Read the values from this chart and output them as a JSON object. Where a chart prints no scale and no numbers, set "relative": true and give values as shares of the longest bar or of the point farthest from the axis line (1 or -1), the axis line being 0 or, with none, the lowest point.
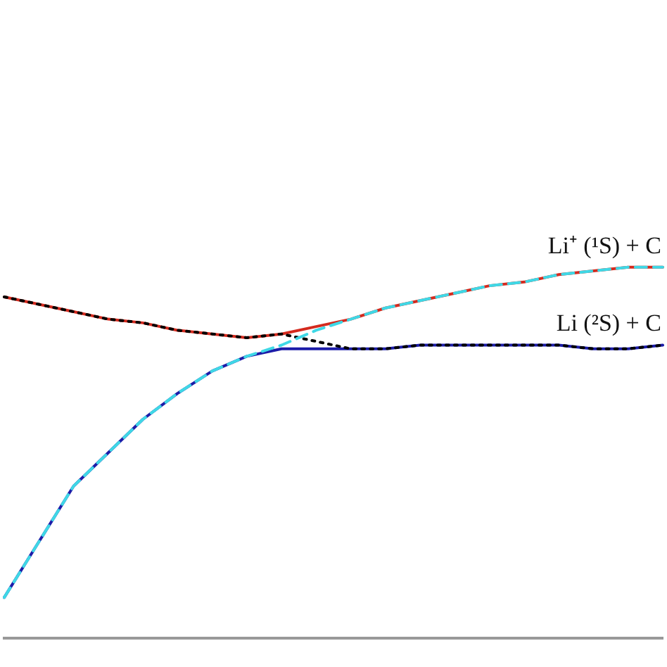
{
  "chart_data": {
    "type": "line",
    "relative": true,
    "legend": false,
    "grid": false,
    "marker": "none",
    "categories": [
      null,
      null,
      null,
      null,
      null,
      null,
      null,
      null,
      null,
      null,
      null,
      null,
      null,
      null,
      null,
      null,
      null,
      null,
      null,
      null
    ],
    "series": [
      {
        "color": "#d42a1e",
        "line_style": "solid",
        "values": [
          0.92,
          0.9,
          0.88,
          0.86,
          0.85,
          0.83,
          0.82,
          0.81,
          0.82,
          0.84,
          0.86,
          0.89,
          0.91,
          0.93,
          0.95,
          0.96,
          0.98,
          0.99,
          1,
          1
        ]
      },
      {
        "color": "#1c1ca8",
        "line_style": "solid",
        "values": [
          0.11,
          0.26,
          0.41,
          0.5,
          0.59,
          0.66,
          0.72,
          0.76,
          0.78,
          0.78,
          0.78,
          0.78,
          0.79,
          0.79,
          0.79,
          0.79,
          0.79,
          0.78,
          0.78,
          0.79
        ]
      },
      {
        "color": "#000000",
        "line_style": "dotted",
        "values": [
          0.92,
          0.9,
          0.88,
          0.86,
          0.85,
          0.83,
          0.82,
          0.81,
          0.82,
          0.8,
          0.78,
          0.78,
          0.79,
          0.79,
          0.79,
          0.79,
          0.79,
          0.78,
          0.78,
          0.79
        ]
      },
      {
        "color": "#3fd8e6",
        "line_style": "dashed",
        "values": [
          0.11,
          0.26,
          0.41,
          0.5,
          0.59,
          0.66,
          0.72,
          0.76,
          0.79,
          0.83,
          0.86,
          0.89,
          0.91,
          0.93,
          0.95,
          0.96,
          0.98,
          0.99,
          1,
          1
        ]
      }
    ],
    "annotations": [
      "Li⁺ (¹S) + C",
      "Li (²S) + C"
    ]
  }
}
